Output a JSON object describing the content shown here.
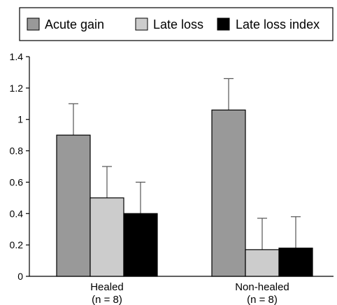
{
  "chart_data": {
    "type": "bar",
    "title": "",
    "xlabel": "",
    "ylabel": "",
    "ylim": [
      0,
      1.4
    ],
    "yticks": [
      "0",
      "0.2",
      "0.4",
      "0.6",
      "0.8",
      "1",
      "1.2",
      "1.4"
    ],
    "grid": false,
    "legend_position": "top",
    "categories": [
      {
        "line1": "Healed",
        "line2": "(n = 8)"
      },
      {
        "line1": "Non-healed",
        "line2": "(n = 8)"
      }
    ],
    "series": [
      {
        "name": "Acute gain",
        "color": "#999999",
        "values": [
          0.9,
          1.06
        ],
        "error": [
          0.2,
          0.2
        ]
      },
      {
        "name": "Late loss",
        "color": "#cccccc",
        "values": [
          0.5,
          0.17
        ],
        "error": [
          0.2,
          0.2
        ]
      },
      {
        "name": "Late loss index",
        "color": "#000000",
        "values": [
          0.4,
          0.18
        ],
        "error": [
          0.2,
          0.2
        ]
      }
    ]
  }
}
